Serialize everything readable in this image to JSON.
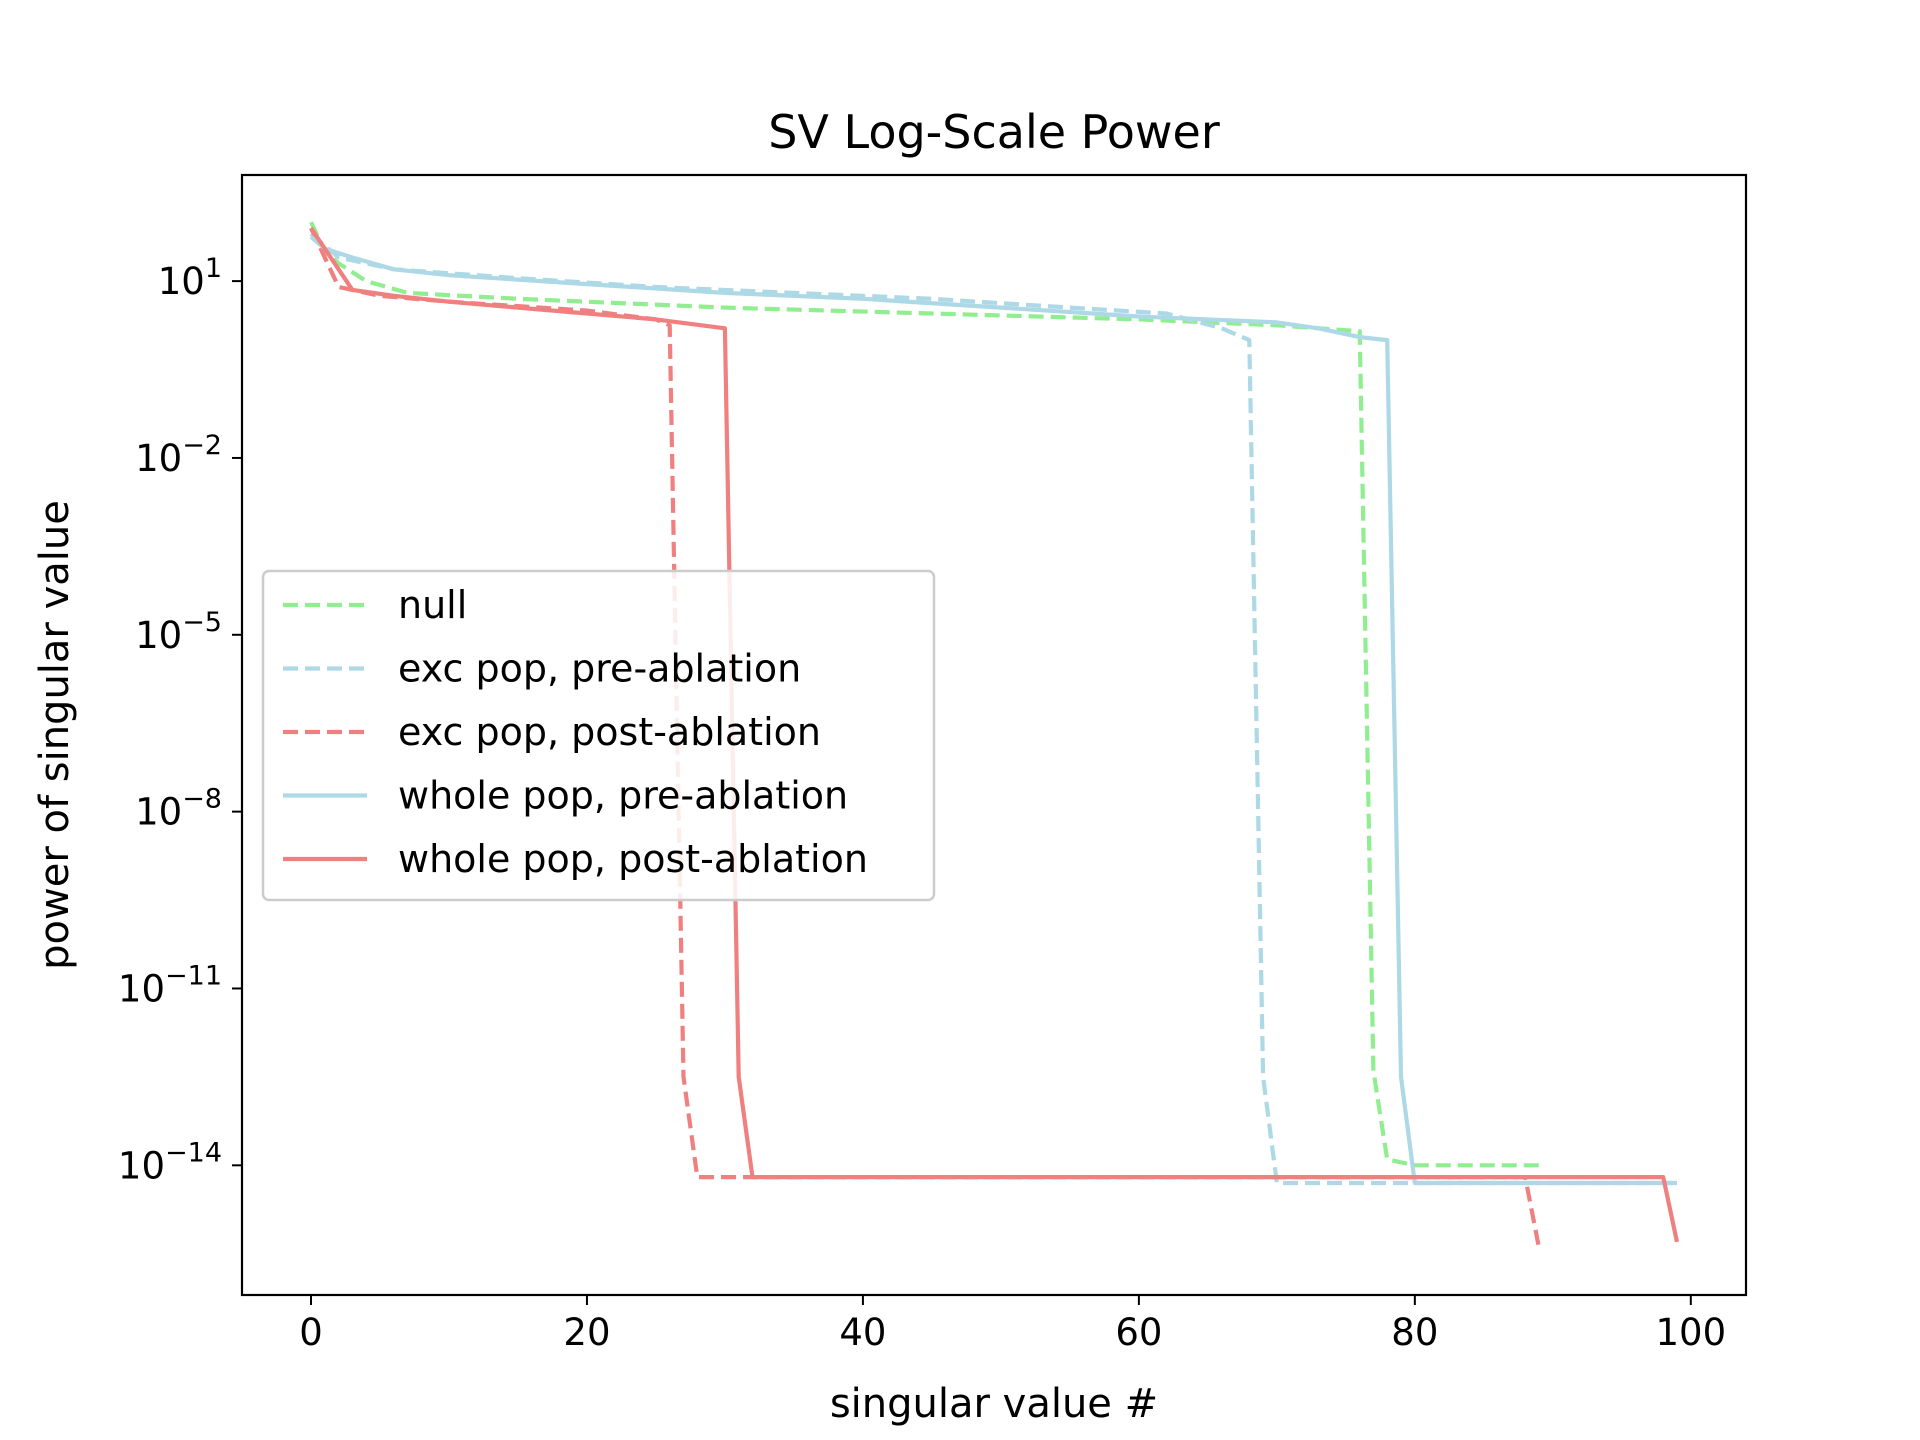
{
  "chart_data": {
    "type": "line",
    "title": "SV Log-Scale Power",
    "xlabel": "singular value #",
    "ylabel": "power of singular value",
    "y_scale": "log",
    "xlim": [
      -5,
      104
    ],
    "ylim_exponent": [
      -16.2,
      2.8
    ],
    "x_ticks": [
      0,
      20,
      40,
      60,
      80,
      100
    ],
    "y_ticks": [
      {
        "base": "10",
        "exp": "1",
        "value": 1
      },
      {
        "base": "10",
        "exp": "−2",
        "value": -2
      },
      {
        "base": "10",
        "exp": "−5",
        "value": -5
      },
      {
        "base": "10",
        "exp": "−8",
        "value": -8
      },
      {
        "base": "10",
        "exp": "−11",
        "value": -11
      },
      {
        "base": "10",
        "exp": "−14",
        "value": -14
      }
    ],
    "grid": false,
    "legend_position": "center-left",
    "series": [
      {
        "name": "null",
        "color": "#90ee90",
        "style": "dashed",
        "points": [
          [
            0,
            2.0
          ],
          [
            1,
            1.5
          ],
          [
            2,
            1.3
          ],
          [
            4,
            1.0
          ],
          [
            7,
            0.8
          ],
          [
            15,
            0.7
          ],
          [
            30,
            0.55
          ],
          [
            45,
            0.45
          ],
          [
            60,
            0.35
          ],
          [
            70,
            0.25
          ],
          [
            76,
            0.15
          ],
          [
            77,
            -12.4
          ],
          [
            78,
            -13.9
          ],
          [
            80,
            -14.0
          ],
          [
            89,
            -14.0
          ]
        ]
      },
      {
        "name": "exc pop, pre-ablation",
        "color": "#add8e6",
        "style": "dashed",
        "points": [
          [
            0,
            1.8
          ],
          [
            2,
            1.4
          ],
          [
            6,
            1.2
          ],
          [
            15,
            1.05
          ],
          [
            25,
            0.9
          ],
          [
            35,
            0.8
          ],
          [
            45,
            0.7
          ],
          [
            55,
            0.55
          ],
          [
            62,
            0.45
          ],
          [
            66,
            0.2
          ],
          [
            68,
            0.0
          ],
          [
            69,
            -12.5
          ],
          [
            70,
            -14.3
          ],
          [
            99,
            -14.3
          ]
        ]
      },
      {
        "name": "exc pop, post-ablation",
        "color": "#f08080",
        "style": "dashed",
        "points": [
          [
            0,
            1.9
          ],
          [
            2,
            0.9
          ],
          [
            5,
            0.75
          ],
          [
            10,
            0.65
          ],
          [
            20,
            0.5
          ],
          [
            25,
            0.35
          ],
          [
            26,
            0.25
          ],
          [
            27,
            -12.5
          ],
          [
            28,
            -14.2
          ],
          [
            88,
            -14.2
          ],
          [
            89,
            -15.4
          ]
        ]
      },
      {
        "name": "whole pop, pre-ablation",
        "color": "#add8e6",
        "style": "solid",
        "points": [
          [
            0,
            1.75
          ],
          [
            1,
            1.55
          ],
          [
            3,
            1.4
          ],
          [
            6,
            1.2
          ],
          [
            10,
            1.1
          ],
          [
            20,
            0.95
          ],
          [
            30,
            0.8
          ],
          [
            40,
            0.7
          ],
          [
            50,
            0.55
          ],
          [
            60,
            0.4
          ],
          [
            70,
            0.3
          ],
          [
            73,
            0.2
          ],
          [
            76,
            0.05
          ],
          [
            78,
            0.0
          ],
          [
            79,
            -12.5
          ],
          [
            80,
            -14.3
          ],
          [
            99,
            -14.3
          ]
        ]
      },
      {
        "name": "whole pop, post-ablation",
        "color": "#f08080",
        "style": "solid",
        "points": [
          [
            0,
            1.9
          ],
          [
            3,
            0.85
          ],
          [
            6,
            0.75
          ],
          [
            10,
            0.65
          ],
          [
            15,
            0.55
          ],
          [
            20,
            0.45
          ],
          [
            25,
            0.35
          ],
          [
            30,
            0.2
          ],
          [
            31,
            -12.5
          ],
          [
            32,
            -14.2
          ],
          [
            98,
            -14.2
          ],
          [
            99,
            -15.3
          ]
        ]
      }
    ]
  }
}
